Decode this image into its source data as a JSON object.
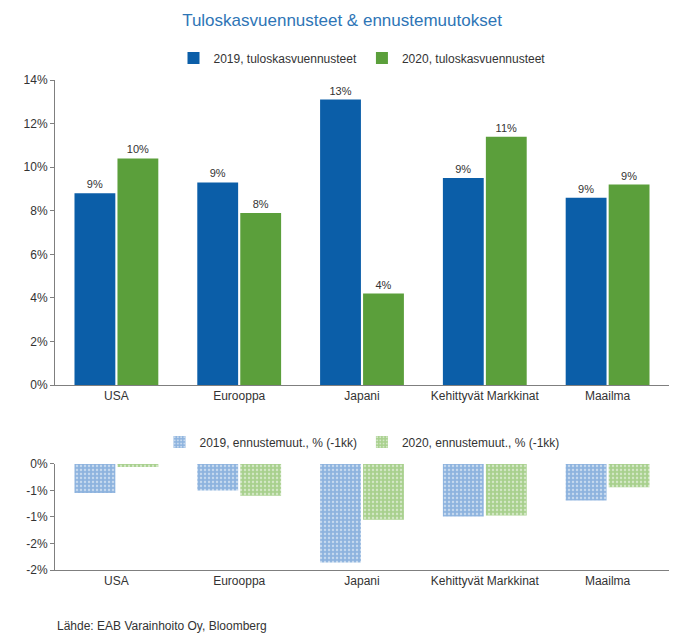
{
  "chart_data": [
    {
      "type": "bar",
      "title": "Tuloskasvuennusteet & ennustemuutokset",
      "categories": [
        "USA",
        "Eurooppa",
        "Japani",
        "Kehittyvät Markkinat",
        "Maailma"
      ],
      "series": [
        {
          "name": "2019, tuloskasvuennusteet",
          "color": "#0b5ea8",
          "values": [
            8.8,
            9.3,
            13.1,
            9.5,
            8.6
          ],
          "value_labels": [
            "9%",
            "9%",
            "13%",
            "9%",
            "9%"
          ]
        },
        {
          "name": "2020, tuloskasvuennusteet",
          "color": "#5b9f3b",
          "values": [
            10.4,
            7.9,
            4.2,
            11.4,
            9.2
          ],
          "value_labels": [
            "10%",
            "8%",
            "4%",
            "11%",
            "9%"
          ]
        }
      ],
      "ylim": [
        0,
        14
      ],
      "yticks": [
        {
          "value": 0,
          "label": "0%"
        },
        {
          "value": 2,
          "label": "2%"
        },
        {
          "value": 4,
          "label": "4%"
        },
        {
          "value": 6,
          "label": "6%"
        },
        {
          "value": 8,
          "label": "8%"
        },
        {
          "value": 10,
          "label": "10%"
        },
        {
          "value": 12,
          "label": "12%"
        },
        {
          "value": 14,
          "label": "14%"
        }
      ],
      "grid": false,
      "legend": "top",
      "data_labels": true
    },
    {
      "type": "bar",
      "categories": [
        "USA",
        "Eurooppa",
        "Japani",
        "Kehittyvät Markkinat",
        "Maailma"
      ],
      "series": [
        {
          "name": "2019, ennustemuut., % (-1kk)",
          "color": "#8db3de",
          "marker": "dotted",
          "values": [
            -0.55,
            -0.5,
            -1.86,
            -0.99,
            -0.69
          ]
        },
        {
          "name": "2020, ennustemuut., % (-1kk)",
          "color": "#a8d08d",
          "marker": "dotted",
          "values": [
            -0.06,
            -0.6,
            -1.05,
            -0.97,
            -0.44
          ]
        }
      ],
      "ylim": [
        -2,
        0
      ],
      "yticks": [
        {
          "value": 0,
          "label": "0%"
        },
        {
          "value": -0.5,
          "label": "-1%"
        },
        {
          "value": -1,
          "label": "-1%"
        },
        {
          "value": -1.5,
          "label": "-2%"
        },
        {
          "value": -2,
          "label": "-2%"
        }
      ],
      "grid": false,
      "legend": "top",
      "data_labels": false,
      "annotations": [
        "Lähde: EAB Varainhoito Oy, Bloomberg"
      ]
    }
  ]
}
